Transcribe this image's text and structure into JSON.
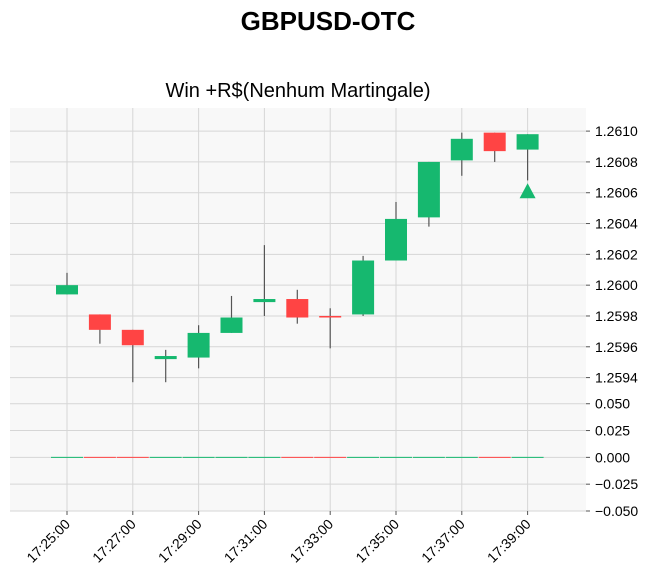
{
  "chart_data": {
    "type": "candlestick",
    "title": "GBPUSD-OTC",
    "subtitle": "Win +R$(Nenhum Martingale)",
    "up_color": "#16b86f",
    "down_color": "#ff4444",
    "marker_color": "#16b86f",
    "grid": true,
    "categories": [
      "17:25:00",
      "17:26:00",
      "17:27:00",
      "17:28:00",
      "17:29:00",
      "17:30:00",
      "17:31:00",
      "17:32:00",
      "17:33:00",
      "17:34:00",
      "17:35:00",
      "17:36:00",
      "17:37:00",
      "17:38:00",
      "17:39:00"
    ],
    "x_tick_labels": [
      "17:25:00",
      "17:27:00",
      "17:29:00",
      "17:31:00",
      "17:33:00",
      "17:35:00",
      "17:37:00",
      "17:39:00"
    ],
    "price_ylim": [
      1.2593,
      1.26115
    ],
    "price_ticks": [
      "1.2594",
      "1.2596",
      "1.2598",
      "1.2600",
      "1.2602",
      "1.2604",
      "1.2606",
      "1.2608",
      "1.2610"
    ],
    "volume_ylim": [
      -0.05,
      0.06
    ],
    "volume_ticks": [
      "0.050",
      "0.025",
      "0.000",
      "−0.025",
      "−0.050"
    ],
    "candles": [
      {
        "t": "17:25:00",
        "open": 1.25994,
        "high": 1.26008,
        "low": 1.25994,
        "close": 1.26
      },
      {
        "t": "17:26:00",
        "open": 1.25981,
        "high": 1.25981,
        "low": 1.25962,
        "close": 1.25971
      },
      {
        "t": "17:27:00",
        "open": 1.25971,
        "high": 1.25971,
        "low": 1.25937,
        "close": 1.25961
      },
      {
        "t": "17:28:00",
        "open": 1.25952,
        "high": 1.25958,
        "low": 1.25937,
        "close": 1.25954
      },
      {
        "t": "17:29:00",
        "open": 1.25953,
        "high": 1.25974,
        "low": 1.25946,
        "close": 1.25969
      },
      {
        "t": "17:30:00",
        "open": 1.25969,
        "high": 1.25993,
        "low": 1.25969,
        "close": 1.25979
      },
      {
        "t": "17:31:00",
        "open": 1.25989,
        "high": 1.26026,
        "low": 1.2598,
        "close": 1.25991
      },
      {
        "t": "17:32:00",
        "open": 1.25991,
        "high": 1.25997,
        "low": 1.25975,
        "close": 1.25979
      },
      {
        "t": "17:33:00",
        "open": 1.2598,
        "high": 1.25985,
        "low": 1.25959,
        "close": 1.25979
      },
      {
        "t": "17:34:00",
        "open": 1.25981,
        "high": 1.26019,
        "low": 1.2598,
        "close": 1.26016
      },
      {
        "t": "17:35:00",
        "open": 1.26016,
        "high": 1.26054,
        "low": 1.26016,
        "close": 1.26043
      },
      {
        "t": "17:36:00",
        "open": 1.26044,
        "high": 1.2608,
        "low": 1.26038,
        "close": 1.2608
      },
      {
        "t": "17:37:00",
        "open": 1.26081,
        "high": 1.26099,
        "low": 1.26071,
        "close": 1.26095
      },
      {
        "t": "17:38:00",
        "open": 1.26099,
        "high": 1.26099,
        "low": 1.2608,
        "close": 1.26087
      },
      {
        "t": "17:39:00",
        "open": 1.26088,
        "high": 1.26098,
        "low": 1.26068,
        "close": 1.26098
      }
    ],
    "volume": [
      0,
      0,
      0,
      0,
      0,
      0,
      0,
      0,
      0,
      0,
      0,
      0,
      0,
      0,
      0
    ],
    "marker": {
      "t": "17:39:00",
      "price": 1.26061,
      "shape": "triangle-up"
    }
  }
}
